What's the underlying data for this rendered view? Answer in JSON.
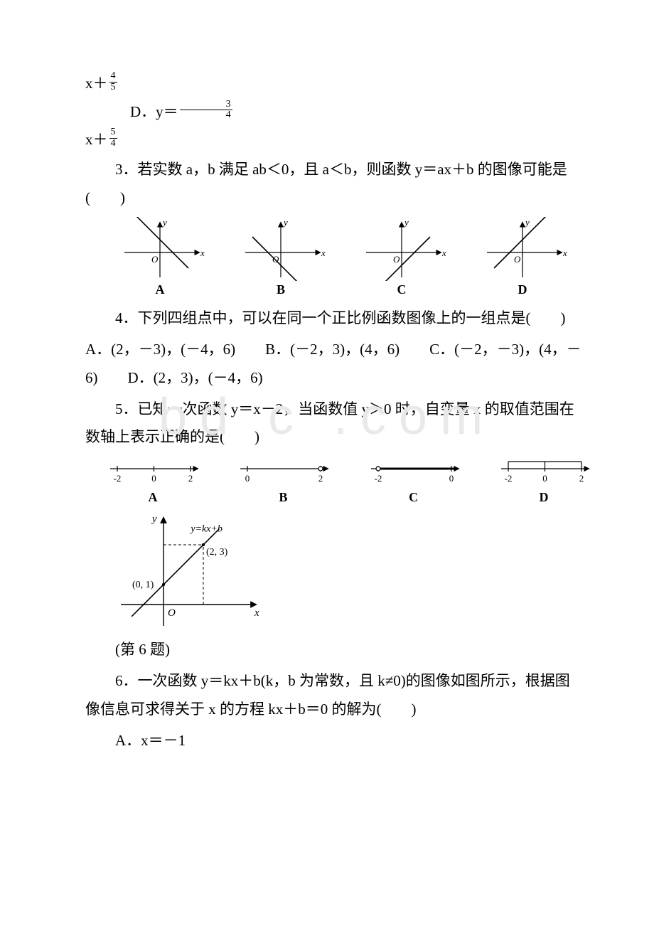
{
  "frag_top": {
    "line1_prefix": "x＋",
    "frac1_num": "4",
    "frac1_den": "5",
    "optD_prefix": "D．y＝",
    "fracD_num": "3",
    "fracD_den": "4",
    "line3_prefix": "x＋",
    "frac3_num": "5",
    "frac3_den": "4"
  },
  "q3": {
    "text": "3．若实数 a，b 满足 ab＜0，且 a＜b，则函数 y＝ax＋b 的图像可能是(　　)",
    "labels": [
      "A",
      "B",
      "C",
      "D"
    ],
    "graphs": [
      {
        "slope": -1,
        "intercept": "pos"
      },
      {
        "slope": -1,
        "intercept": "neg"
      },
      {
        "slope": 1,
        "intercept": "neg"
      },
      {
        "slope": 1,
        "intercept": "pos"
      }
    ],
    "axis_x": "x",
    "axis_y": "y",
    "origin": "O",
    "colors": {
      "axis": "#000000",
      "line": "#000000",
      "bg": "#ffffff"
    }
  },
  "q4": {
    "text": "4．下列四组点中，可以在同一个正比例函数图像上的一组点是(　　)",
    "opts": "A．(2，－3)，(－4，6)　　B．(－2，3)，(4，6)　　C．(－2，－3)，(4，－6)　　D．(2，3)，(－4，6)"
  },
  "q5": {
    "text": "5．已知一次函数 y＝x－2，当函数值 y＞0 时，自变量 x 的取值范围在数轴上表示正确的是(　　)",
    "labels": [
      "A",
      "B",
      "C",
      "D"
    ],
    "lines": [
      {
        "ticks": [
          "-2",
          "0",
          "2"
        ],
        "bold_from": null,
        "bold_to": null
      },
      {
        "ticks": [
          "0",
          "2"
        ],
        "bold_from": 1,
        "bold_to": "arrow"
      },
      {
        "ticks": [
          "-2",
          "0"
        ],
        "bold_from": 0,
        "bold_to": "arrow"
      },
      {
        "ticks": [
          "-2",
          "0",
          "2"
        ],
        "bold_from": null,
        "bold_to": null,
        "top_marks": true
      }
    ]
  },
  "q6": {
    "caption": "(第 6 题)",
    "text": "6．一次函数 y＝kx＋b(k，b 为常数，且 k≠0)的图像如图所示，根据图像信息可求得关于 x 的方程 kx＋b＝0 的解为(　　)",
    "optA": "A．x＝－1",
    "graph": {
      "axis_x": "x",
      "axis_y": "y",
      "origin": "O",
      "eqn": "y=kx+b",
      "pt1": "(0, 1)",
      "pt2": "(2, 3)",
      "x_intercept": -1
    }
  },
  "watermark": "bd    c .com",
  "style": {
    "font_body_pt": 16,
    "font_fraction_pt": 10,
    "font_label_pt": 14,
    "text_color": "#000000",
    "background_color": "#ffffff",
    "watermark_color": "#e9e9e9"
  }
}
